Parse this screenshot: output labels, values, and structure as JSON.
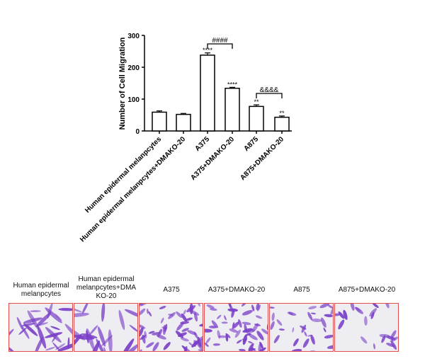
{
  "chart_data": {
    "type": "bar",
    "ylabel": "Number of Cell Migration",
    "ylim": [
      0,
      300
    ],
    "yticks": [
      "0",
      "100",
      "200",
      "300"
    ],
    "categories": [
      "Human epidermal melanpcytes",
      "Human epidermal melanpcytes+DMAKO-20",
      "A375",
      "A375+DMAKO-20",
      "A875",
      "A875+DMAKO-20"
    ],
    "values": [
      59,
      52,
      238,
      134,
      77,
      43
    ],
    "errors": [
      4,
      3,
      7,
      3,
      5,
      4
    ],
    "significance_marks": [
      "",
      "",
      "****",
      "****",
      "**",
      "**"
    ],
    "comparison_brackets": [
      {
        "from": 2,
        "to": 3,
        "label": "####"
      },
      {
        "from": 4,
        "to": 5,
        "label": "&&&&"
      }
    ],
    "bar_fill": "#ffffff",
    "bar_stroke": "#000000"
  },
  "panels": {
    "labels": [
      "Human epidermal melanpcytes",
      "Human epidermal melanpcytes+DMA KO-20",
      "A375",
      "A375+DMAKO-20",
      "A875",
      "A875+DMAKO-20"
    ],
    "stain_color": "#7a3fc8",
    "border_color": "#e05050"
  }
}
